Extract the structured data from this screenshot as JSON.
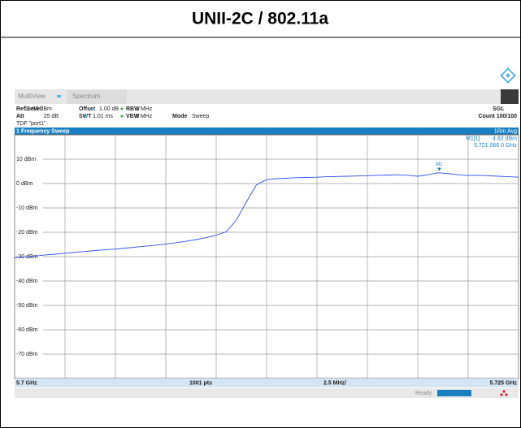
{
  "header": {
    "title": "UNII-2C / 802.11a"
  },
  "toolbar": {
    "tabs": [
      "MultiView",
      "Spectrum"
    ]
  },
  "settings": {
    "row1": [
      "Ref Level",
      "19.86 dBm",
      "Offset",
      "1.00 dB",
      "RBW",
      "1 MHz"
    ],
    "row2": [
      "Att",
      "25 dB",
      "SWT",
      "1.01 ms",
      "VBW",
      "3 MHz",
      "Mode",
      "Sweep"
    ],
    "mode": "SGL",
    "count": "Count 100/100",
    "tdf": "TDF \"port1\""
  },
  "window": {
    "title": "1 Frequency Sweep",
    "trace": "1Rm Avg"
  },
  "marker": {
    "name": "M1[1]",
    "level": "4.82 dBm",
    "freq": "5.721 066 0 GHz",
    "label": "M1",
    "x": 5.721066,
    "y": 4.82
  },
  "chart_data": {
    "type": "line",
    "x": [
      5.7,
      5.7005,
      5.701,
      5.7015,
      5.702,
      5.7025,
      5.703,
      5.7035,
      5.704,
      5.7045,
      5.705,
      5.7055,
      5.706,
      5.7065,
      5.707,
      5.7075,
      5.708,
      5.7085,
      5.709,
      5.7095,
      5.71,
      5.7105,
      5.711,
      5.7115,
      5.712,
      5.7125,
      5.713,
      5.7135,
      5.714,
      5.7145,
      5.715,
      5.7155,
      5.716,
      5.7165,
      5.717,
      5.7175,
      5.718,
      5.7185,
      5.719,
      5.7195,
      5.72,
      5.7205,
      5.721,
      5.7215,
      5.722,
      5.7225,
      5.723,
      5.7235,
      5.724,
      5.7245,
      5.725
    ],
    "series": [
      {
        "color": "#2f4cf0",
        "values": [
          -30.5,
          -30.2,
          -29.8,
          -29.3,
          -29.0,
          -28.6,
          -28.2,
          -27.9,
          -27.5,
          -27.2,
          -26.9,
          -26.5,
          -26.1,
          -25.7,
          -25.3,
          -24.8,
          -24.3,
          -23.7,
          -23.0,
          -22.2,
          -21.2,
          -19.8,
          -15.0,
          -7.5,
          -0.5,
          1.6,
          2.0,
          2.2,
          2.4,
          2.5,
          2.6,
          2.8,
          2.9,
          3.0,
          3.1,
          3.2,
          3.4,
          3.5,
          3.6,
          3.4,
          3.0,
          3.6,
          4.4,
          4.1,
          3.6,
          3.3,
          3.4,
          3.2,
          3.0,
          2.8,
          2.6
        ]
      }
    ],
    "xlim": [
      5.7,
      5.725
    ],
    "xticks": [
      5.7,
      5.7025,
      5.705,
      5.7075,
      5.71,
      5.7125,
      5.715,
      5.7175,
      5.72,
      5.7225,
      5.725
    ],
    "ylim": [
      -80,
      20
    ],
    "yticks": [
      {
        "value": 10,
        "label": "10 dBm"
      },
      {
        "value": 0,
        "label": "0 dBm"
      },
      {
        "value": -10,
        "label": "-10 dBm"
      },
      {
        "value": -20,
        "label": "-20 dBm"
      },
      {
        "value": -30,
        "label": "-30 dBm"
      },
      {
        "value": -40,
        "label": "-40 dBm"
      },
      {
        "value": -50,
        "label": "-50 dBm"
      },
      {
        "value": -60,
        "label": "-60 dBm"
      },
      {
        "value": -70,
        "label": "-70 dBm"
      }
    ],
    "grid": true
  },
  "footer": {
    "start": "5.7 GHz",
    "points": "1001 pts",
    "span": "2.5 MHz/",
    "stop": "5.725 GHz",
    "state": "Ready"
  }
}
